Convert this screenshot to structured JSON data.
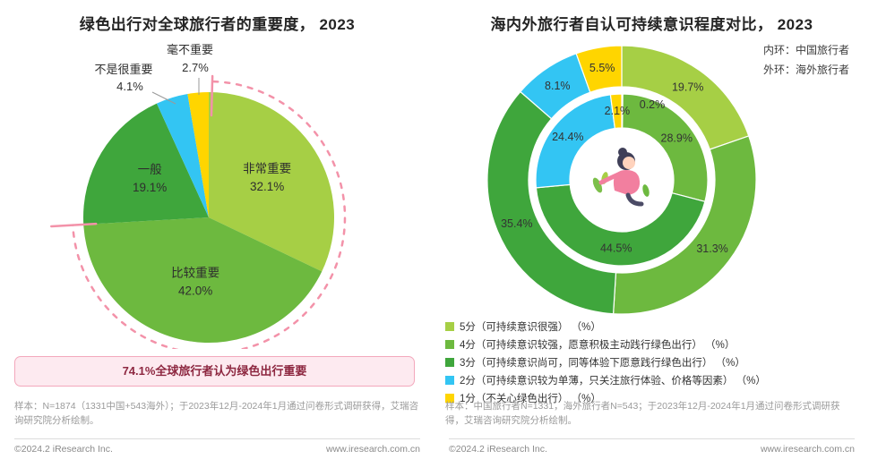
{
  "left_panel": {
    "note": "样本：N=1874（1331中国+543海外）；于2023年12月-2024年1月通过问卷形式调研获得，艾瑞咨询研究院分析绘制。"
  },
  "right_panel": {
    "ring_note_inner": "内环：中国旅行者",
    "ring_note_outer": "外环：海外旅行者",
    "note": "样本：中国旅行者N=1331，海外旅行者N=543；于2023年12月-2024年1月通过问卷形式调研获得，艾瑞咨询研究院分析绘制。"
  },
  "footer": {
    "copyright": "©2024.2 iResearch Inc.",
    "website": "www.iresearch.com.cn"
  },
  "accents": {
    "pink": "#f392a9",
    "callout_bg": "#fdeaf0",
    "callout_border": "#f3a8bc",
    "callout_text": "#8d2740"
  },
  "chart_data": [
    {
      "type": "pie",
      "title": "绿色出行对全球旅行者的重要度， 2023",
      "start_angle_deg": 0,
      "direction": "clockwise",
      "segments": [
        {
          "label": "非常重要",
          "value": 32.1,
          "display": "32.1%",
          "color": "#a6cf45"
        },
        {
          "label": "比较重要",
          "value": 42.0,
          "display": "42.0%",
          "color": "#6db93f"
        },
        {
          "label": "一般",
          "value": 19.1,
          "display": "19.1%",
          "color": "#3fa63c"
        },
        {
          "label": "不是很重要",
          "value": 4.1,
          "display": "4.1%",
          "color": "#33c5f3"
        },
        {
          "label": "毫不重要",
          "value": 2.7,
          "display": "2.7%",
          "color": "#ffd500"
        }
      ],
      "highlight": {
        "pct": 74.1,
        "text": "74.1%全球旅行者认为绿色出行重要",
        "covers": [
          "非常重要",
          "比较重要"
        ],
        "color": "#f392a9"
      }
    },
    {
      "type": "donut-double",
      "title": "海内外旅行者自认可持续意识程度对比， 2023",
      "categories": [
        "5分",
        "4分",
        "3分",
        "2分",
        "1分"
      ],
      "colors": [
        "#a6cf45",
        "#6db93f",
        "#3fa63c",
        "#33c5f3",
        "#ffd500"
      ],
      "rings": [
        {
          "name": "中国旅行者",
          "position": "inner",
          "values": [
            0.2,
            28.9,
            44.5,
            24.4,
            2.1
          ],
          "displays": [
            "0.2%",
            "28.9%",
            "44.5%",
            "24.4%",
            "2.1%"
          ]
        },
        {
          "name": "海外旅行者",
          "position": "outer",
          "values": [
            19.7,
            31.3,
            35.4,
            8.1,
            5.5
          ],
          "displays": [
            "19.7%",
            "31.3%",
            "35.4%",
            "8.1%",
            "5.5%"
          ]
        }
      ],
      "legend": [
        "5分（可持续意识很强） （%）",
        "4分（可持续意识较强，愿意积极主动践行绿色出行） （%）",
        "3分（可持续意识尚可，同等体验下愿意践行绿色出行） （%）",
        "2分（可持续意识较为单薄，只关注旅行体验、价格等因素） （%）",
        "1分（不关心绿色出行） （%）"
      ]
    }
  ]
}
